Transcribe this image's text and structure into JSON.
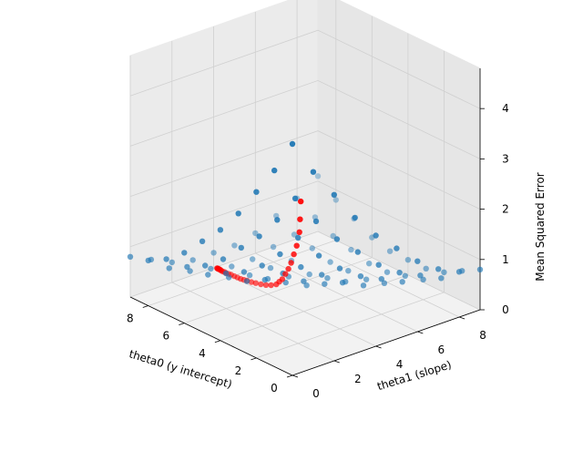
{
  "chart_data": {
    "type": "scatter",
    "projection": "3d",
    "xlabel": "theta0 (y intercept)",
    "ylabel": "theta1 (slope)",
    "zlabel": "Mean Squared Error",
    "xlim": [
      0,
      9
    ],
    "ylim": [
      0,
      9
    ],
    "zlim": [
      0,
      4.8
    ],
    "x_ticks": [
      0,
      2,
      4,
      6,
      8
    ],
    "y_ticks": [
      0,
      2,
      4,
      6,
      8
    ],
    "z_ticks": [
      0,
      1,
      2,
      3,
      4
    ],
    "grid": true,
    "colors": {
      "grid_points": "#1f77b4",
      "descent_path": "#ff0000"
    },
    "series": [
      {
        "role": "grid",
        "x": [
          0,
          0,
          0,
          0,
          0,
          0,
          0,
          0,
          0,
          0,
          1,
          1,
          1,
          1,
          1,
          1,
          1,
          1,
          1,
          1,
          2,
          2,
          2,
          2,
          2,
          2,
          2,
          2,
          2,
          2,
          3,
          3,
          3,
          3,
          3,
          3,
          3,
          3,
          3,
          3,
          4,
          4,
          4,
          4,
          4,
          4,
          4,
          4,
          4,
          4,
          5,
          5,
          5,
          5,
          5,
          5,
          5,
          5,
          5,
          5,
          6,
          6,
          6,
          6,
          6,
          6,
          6,
          6,
          6,
          6,
          7,
          7,
          7,
          7,
          7,
          7,
          7,
          7,
          7,
          7,
          8,
          8,
          8,
          8,
          8,
          8,
          8,
          8,
          8,
          8,
          9,
          9,
          9,
          9,
          9,
          9,
          9,
          9,
          9,
          9
        ],
        "y": [
          0,
          1,
          2,
          3,
          4,
          5,
          6,
          7,
          8,
          9,
          0,
          1,
          2,
          3,
          4,
          5,
          6,
          7,
          8,
          9,
          0,
          1,
          2,
          3,
          4,
          5,
          6,
          7,
          8,
          9,
          0,
          1,
          2,
          3,
          4,
          5,
          6,
          7,
          8,
          9,
          0,
          1,
          2,
          3,
          4,
          5,
          6,
          7,
          8,
          9,
          0,
          1,
          2,
          3,
          4,
          5,
          6,
          7,
          8,
          9,
          0,
          1,
          2,
          3,
          4,
          5,
          6,
          7,
          8,
          9,
          0,
          1,
          2,
          3,
          4,
          5,
          6,
          7,
          8,
          9,
          0,
          1,
          2,
          3,
          4,
          5,
          6,
          7,
          8,
          9,
          0,
          1,
          2,
          3,
          4,
          5,
          6,
          7,
          8,
          9
        ],
        "z": [
          4.6,
          3.9,
          3.3,
          2.7,
          2.2,
          1.8,
          1.4,
          1.1,
          0.9,
          0.8,
          3.9,
          3.2,
          2.6,
          2.1,
          1.7,
          1.3,
          1.0,
          0.8,
          0.6,
          0.6,
          3.3,
          2.6,
          2.1,
          1.6,
          1.2,
          0.9,
          0.7,
          0.5,
          0.4,
          0.4,
          2.7,
          2.1,
          1.6,
          1.2,
          0.9,
          0.6,
          0.4,
          0.3,
          0.3,
          0.3,
          2.2,
          1.7,
          1.2,
          0.9,
          0.6,
          0.4,
          0.3,
          0.2,
          0.2,
          0.3,
          1.8,
          1.3,
          0.9,
          0.6,
          0.4,
          0.2,
          0.2,
          0.2,
          0.2,
          0.3,
          1.4,
          1.0,
          0.7,
          0.4,
          0.3,
          0.2,
          0.1,
          0.2,
          0.3,
          0.4,
          1.1,
          0.8,
          0.5,
          0.3,
          0.2,
          0.2,
          0.2,
          0.3,
          0.4,
          0.6,
          0.9,
          0.6,
          0.4,
          0.3,
          0.2,
          0.2,
          0.3,
          0.4,
          0.6,
          0.8,
          0.8,
          0.6,
          0.4,
          0.3,
          0.3,
          0.3,
          0.4,
          0.6,
          0.8,
          1.1
        ]
      },
      {
        "role": "path",
        "x": [
          0,
          0.5,
          1,
          1.5,
          2,
          2.5,
          3,
          3.4,
          3.8,
          4.2,
          4.6,
          5.0,
          5.4,
          5.8,
          6.2,
          6.5,
          6.8,
          7.0,
          7.2,
          7.4,
          7.6,
          7.8,
          7.95,
          8.1,
          8.2,
          8.3,
          8.4,
          8.45,
          8.5,
          8.55,
          8.6,
          8.62,
          8.64,
          8.66,
          8.68,
          8.7
        ],
        "y": [
          0.4,
          0.8,
          1.2,
          1.5,
          1.8,
          2.1,
          2.4,
          2.6,
          2.8,
          3.0,
          3.2,
          3.3,
          3.4,
          3.5,
          3.6,
          3.65,
          3.7,
          3.72,
          3.74,
          3.76,
          3.78,
          3.8,
          3.81,
          3.82,
          3.83,
          3.84,
          3.85,
          3.86,
          3.87,
          3.88,
          3.89,
          3.9,
          3.9,
          3.9,
          3.9,
          3.9
        ],
        "z": [
          3.4,
          2.9,
          2.5,
          2.1,
          1.8,
          1.5,
          1.25,
          1.05,
          0.85,
          0.7,
          0.55,
          0.45,
          0.37,
          0.3,
          0.24,
          0.2,
          0.17,
          0.15,
          0.13,
          0.12,
          0.11,
          0.1,
          0.09,
          0.08,
          0.08,
          0.07,
          0.07,
          0.07,
          0.07,
          0.07,
          0.06,
          0.06,
          0.06,
          0.06,
          0.06,
          0.06
        ]
      }
    ]
  }
}
